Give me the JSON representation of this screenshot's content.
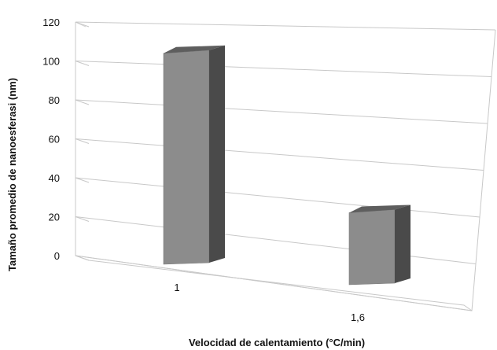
{
  "chart_data": {
    "type": "bar",
    "style": "3d-perspective",
    "categories": [
      "1",
      "1,6"
    ],
    "values": [
      110,
      37
    ],
    "xlabel": "Velocidad de calentamiento (°C/min)",
    "ylabel": "Tamaño promedio de nanoesferasi (nm)",
    "ylim": [
      0,
      120
    ],
    "yticks": [
      0,
      20,
      40,
      60,
      80,
      100,
      120
    ],
    "grid": true,
    "legend": "none",
    "colors": {
      "bar_front": "#8c8c8c",
      "bar_side": "#4a4a4a",
      "bar_top": "#5e5e5e",
      "grid": "#c8c8c8"
    }
  }
}
